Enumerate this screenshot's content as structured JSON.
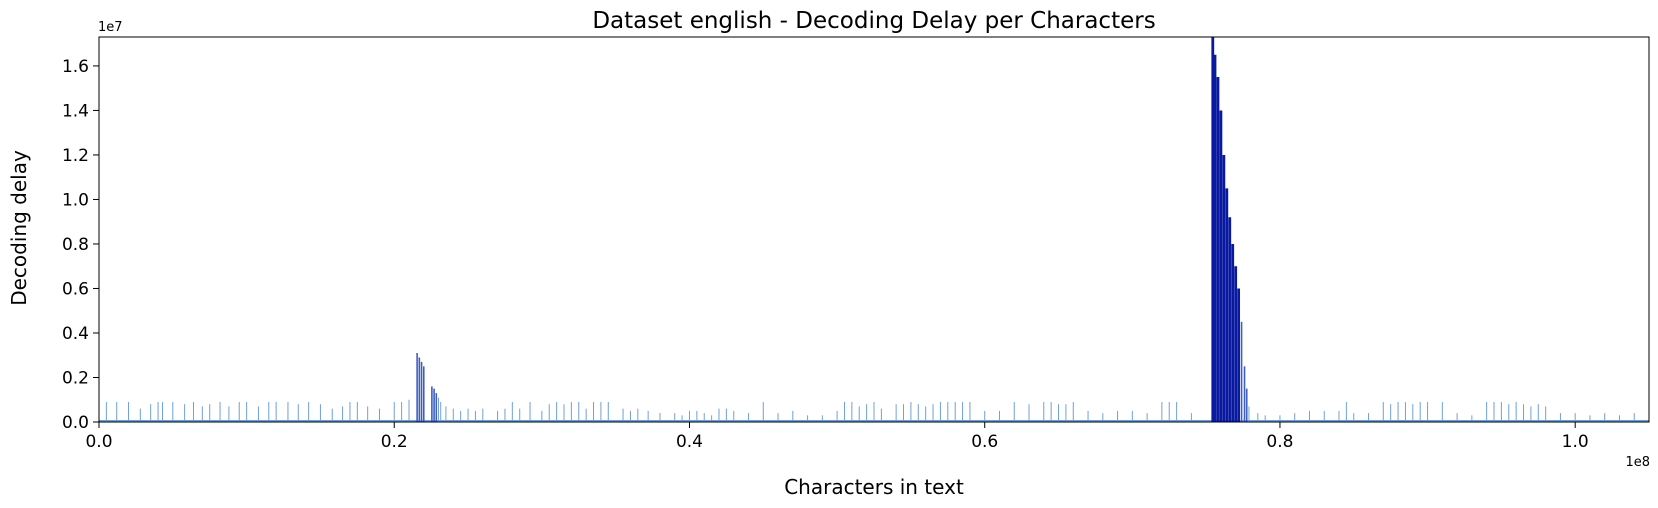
{
  "chart_data": {
    "type": "bar",
    "title": "Dataset english - Decoding Delay per Characters",
    "xlabel": "Characters in text",
    "ylabel": "Decoding delay",
    "x_offset_label": "1e8",
    "y_offset_label": "1e7",
    "xlim": [
      0,
      1.05
    ],
    "ylim": [
      0,
      1.73
    ],
    "x_ticks": [
      0.0,
      0.2,
      0.4,
      0.6,
      0.8,
      1.0
    ],
    "x_tick_labels": [
      "0.0",
      "0.2",
      "0.4",
      "0.6",
      "0.8",
      "1.0"
    ],
    "y_ticks": [
      0.0,
      0.2,
      0.4,
      0.6,
      0.8,
      1.0,
      1.2,
      1.4,
      1.6
    ],
    "y_tick_labels": [
      "0.0",
      "0.2",
      "0.4",
      "0.6",
      "0.8",
      "1.0",
      "1.2",
      "1.4",
      "1.6"
    ],
    "grid": false,
    "colors": {
      "light": "#6fa0d8",
      "mid": "#3f5fbf",
      "dark": "#0a1aa0"
    },
    "series": [
      {
        "x": [
          0.005,
          0.012,
          0.02,
          0.028,
          0.035,
          0.04,
          0.043,
          0.05,
          0.058,
          0.064,
          0.07,
          0.075,
          0.082,
          0.088,
          0.095,
          0.1,
          0.108,
          0.115,
          0.12,
          0.128,
          0.135,
          0.142,
          0.15,
          0.158,
          0.165,
          0.17,
          0.175,
          0.182,
          0.19,
          0.2,
          0.205,
          0.21,
          0.2155,
          0.217,
          0.2185,
          0.22,
          0.2255,
          0.227,
          0.2285,
          0.23,
          0.2315,
          0.235,
          0.24,
          0.245,
          0.25,
          0.255,
          0.26,
          0.27,
          0.275,
          0.28,
          0.285,
          0.292,
          0.3,
          0.305,
          0.31,
          0.315,
          0.32,
          0.325,
          0.33,
          0.335,
          0.34,
          0.345,
          0.355,
          0.36,
          0.365,
          0.372,
          0.38,
          0.39,
          0.395,
          0.4,
          0.405,
          0.41,
          0.415,
          0.42,
          0.425,
          0.43,
          0.44,
          0.45,
          0.46,
          0.47,
          0.48,
          0.49,
          0.5,
          0.505,
          0.51,
          0.515,
          0.52,
          0.525,
          0.53,
          0.54,
          0.545,
          0.55,
          0.555,
          0.56,
          0.565,
          0.57,
          0.575,
          0.58,
          0.585,
          0.59,
          0.6,
          0.61,
          0.62,
          0.63,
          0.64,
          0.645,
          0.65,
          0.655,
          0.66,
          0.67,
          0.68,
          0.69,
          0.7,
          0.71,
          0.72,
          0.725,
          0.73,
          0.74,
          0.7545,
          0.756,
          0.758,
          0.76,
          0.762,
          0.764,
          0.766,
          0.768,
          0.77,
          0.772,
          0.774,
          0.776,
          0.7775,
          0.779,
          0.785,
          0.79,
          0.8,
          0.81,
          0.82,
          0.83,
          0.84,
          0.845,
          0.85,
          0.86,
          0.87,
          0.875,
          0.88,
          0.885,
          0.89,
          0.895,
          0.9,
          0.91,
          0.92,
          0.93,
          0.94,
          0.945,
          0.95,
          0.955,
          0.96,
          0.965,
          0.97,
          0.975,
          0.98,
          0.99,
          1.0,
          1.01,
          1.02,
          1.03,
          1.04
        ],
        "y": [
          0.09,
          0.09,
          0.09,
          0.06,
          0.08,
          0.09,
          0.09,
          0.09,
          0.08,
          0.09,
          0.07,
          0.08,
          0.09,
          0.07,
          0.09,
          0.09,
          0.07,
          0.09,
          0.09,
          0.09,
          0.08,
          0.09,
          0.08,
          0.06,
          0.07,
          0.09,
          0.09,
          0.07,
          0.06,
          0.09,
          0.09,
          0.1,
          0.31,
          0.29,
          0.27,
          0.25,
          0.16,
          0.15,
          0.13,
          0.11,
          0.09,
          0.07,
          0.06,
          0.05,
          0.06,
          0.05,
          0.06,
          0.05,
          0.06,
          0.09,
          0.06,
          0.09,
          0.05,
          0.08,
          0.09,
          0.08,
          0.09,
          0.09,
          0.06,
          0.09,
          0.09,
          0.09,
          0.06,
          0.05,
          0.06,
          0.05,
          0.04,
          0.04,
          0.03,
          0.05,
          0.05,
          0.04,
          0.03,
          0.06,
          0.06,
          0.05,
          0.04,
          0.09,
          0.04,
          0.05,
          0.03,
          0.03,
          0.05,
          0.09,
          0.09,
          0.07,
          0.08,
          0.09,
          0.06,
          0.08,
          0.08,
          0.09,
          0.08,
          0.07,
          0.08,
          0.09,
          0.09,
          0.09,
          0.09,
          0.09,
          0.05,
          0.05,
          0.09,
          0.08,
          0.09,
          0.09,
          0.08,
          0.08,
          0.09,
          0.05,
          0.04,
          0.05,
          0.05,
          0.04,
          0.09,
          0.09,
          0.09,
          0.04,
          1.73,
          1.65,
          1.55,
          1.4,
          1.2,
          1.05,
          0.92,
          0.8,
          0.7,
          0.6,
          0.45,
          0.25,
          0.15,
          0.07,
          0.04,
          0.03,
          0.03,
          0.04,
          0.05,
          0.05,
          0.05,
          0.09,
          0.04,
          0.04,
          0.09,
          0.08,
          0.09,
          0.09,
          0.08,
          0.09,
          0.09,
          0.09,
          0.04,
          0.03,
          0.09,
          0.09,
          0.09,
          0.08,
          0.09,
          0.08,
          0.07,
          0.08,
          0.07,
          0.04,
          0.04,
          0.03,
          0.04,
          0.03,
          0.04
        ]
      }
    ]
  }
}
